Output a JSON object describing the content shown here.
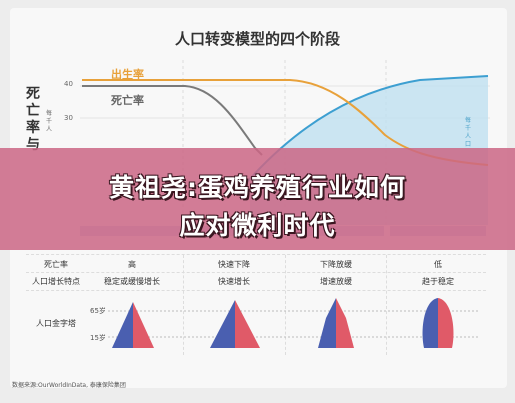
{
  "chart_title": "人口转变模型的四个阶段",
  "y_axis_label": "死亡率与",
  "y_axis_sublabel": "每千人",
  "y_ticks": [
    "40",
    "30"
  ],
  "legend": {
    "birth_rate": "出生率",
    "death_rate": "死亡率"
  },
  "right_axis_label": "每千人口",
  "colors": {
    "birth_rate": "#e8a13a",
    "death_rate": "#7a7a7a",
    "population": "#3d9fd1",
    "banner": "#cb6685",
    "pyramid_male": "#4a5fb0",
    "pyramid_female": "#e05a68"
  },
  "table": {
    "rows": [
      {
        "label": "死亡率",
        "cells": [
          "高",
          "快速下降",
          "下降放缓",
          "低"
        ]
      },
      {
        "label": "人口增长特点",
        "cells": [
          "稳定或缓慢增长",
          "快速增长",
          "增速放缓",
          "趋于稳定"
        ]
      },
      {
        "label": "人口金字塔",
        "cells": [
          "",
          "",
          "",
          ""
        ]
      }
    ],
    "age_labels": [
      "65岁",
      "15岁"
    ]
  },
  "source": "数据来源:OurWorldInData, 泰康保险集团",
  "banner": {
    "line1": "黄祖尧:蛋鸡养殖行业如何",
    "line2": "应对微利时代"
  },
  "chart_data": {
    "type": "line",
    "title": "人口转变模型的四个阶段",
    "series": [
      {
        "name": "出生率",
        "values": [
          40,
          40,
          40,
          38,
          30,
          20,
          15,
          12
        ]
      },
      {
        "name": "死亡率",
        "values": [
          38,
          38,
          37,
          30,
          20,
          14,
          12,
          12
        ]
      }
    ]
  }
}
